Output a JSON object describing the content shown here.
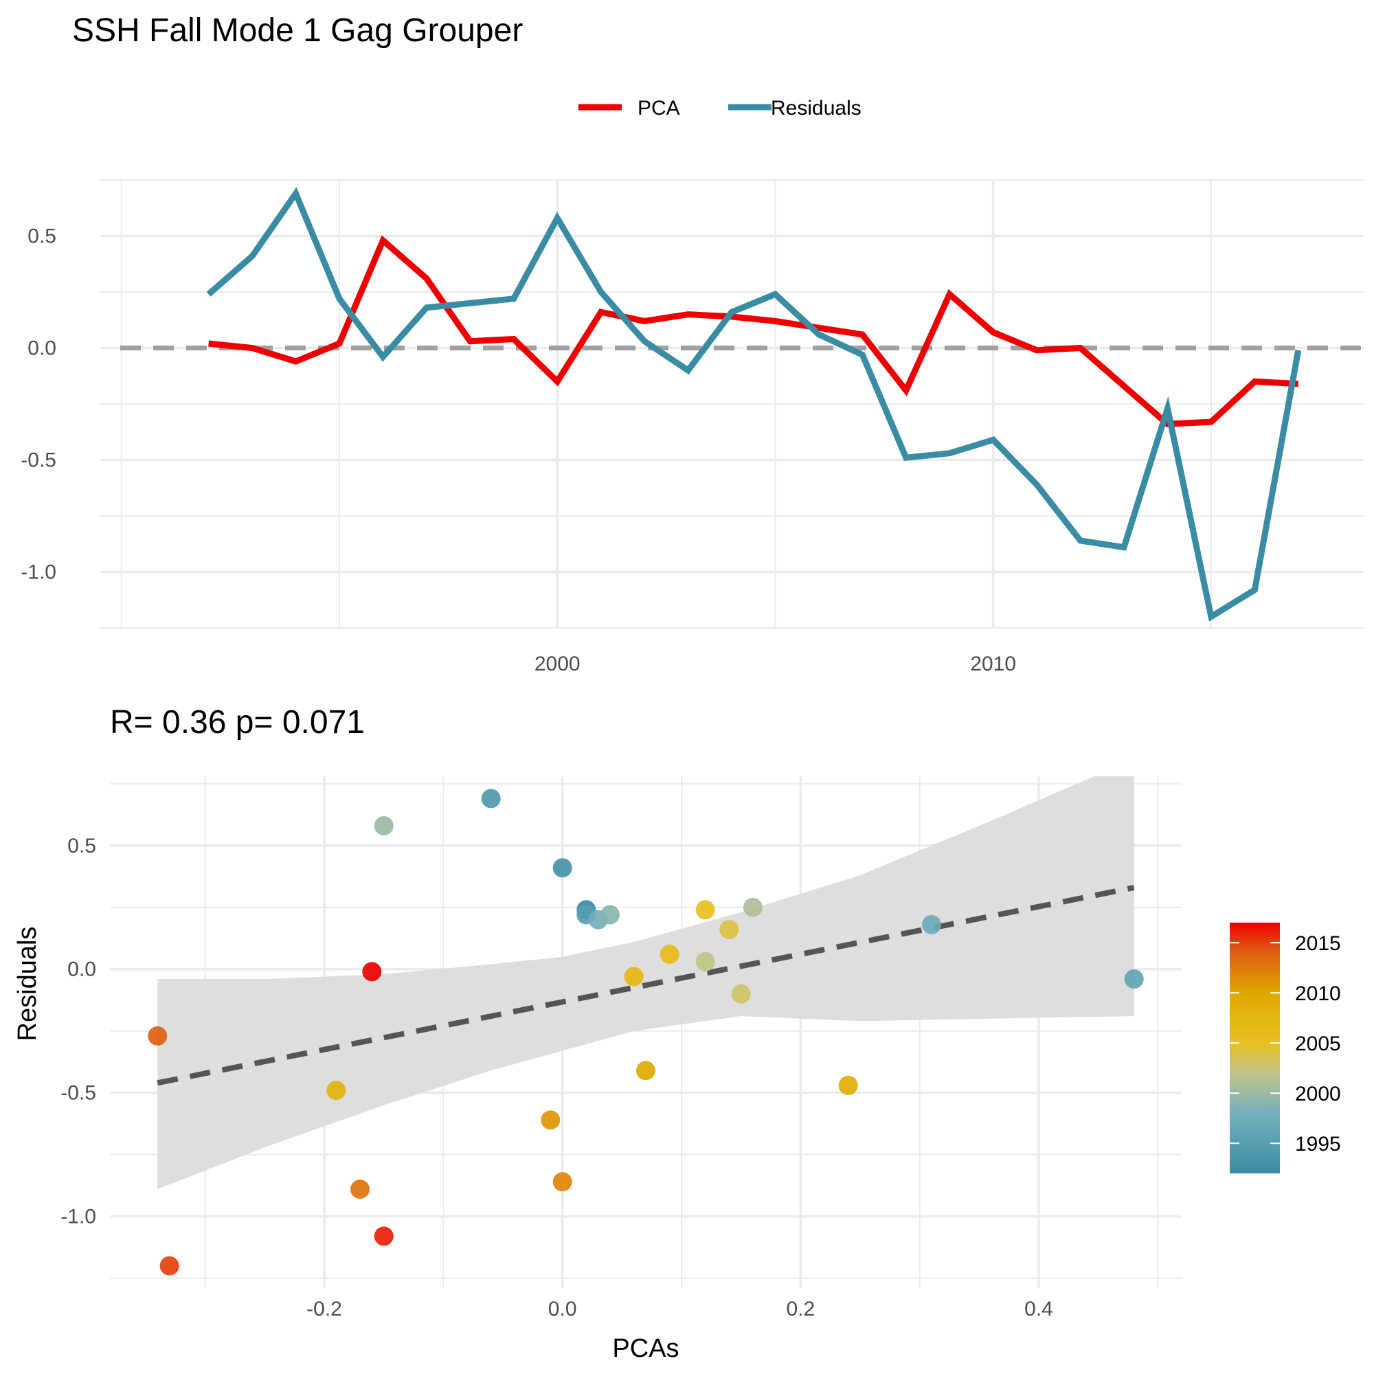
{
  "title": "SSH Fall Mode 1 Gag Grouper",
  "colors": {
    "pca": "#EE0000",
    "residuals": "#3A8CA4",
    "zero_line": "#A0A0A0",
    "trend": "#555555",
    "ribbon": "#DCDCDC",
    "grid": "#EBEBEB"
  },
  "chart_data": [
    {
      "type": "line",
      "legend": {
        "position": "top",
        "entries": [
          "PCA",
          "Residuals"
        ]
      },
      "x": [
        1992,
        1993,
        1994,
        1995,
        1996,
        1997,
        1998,
        1999,
        2000,
        2001,
        2002,
        2003,
        2004,
        2005,
        2006,
        2007,
        2008,
        2009,
        2010,
        2011,
        2012,
        2013,
        2014,
        2015,
        2016,
        2017,
        2018
      ],
      "series": [
        {
          "name": "PCA",
          "values": [
            0.02,
            0.0,
            -0.06,
            0.02,
            0.48,
            0.31,
            0.03,
            0.04,
            -0.15,
            0.16,
            0.12,
            0.15,
            0.14,
            0.12,
            0.09,
            0.06,
            -0.19,
            0.24,
            0.07,
            -0.01,
            0.0,
            -0.17,
            -0.34,
            -0.33,
            -0.15,
            -0.16,
            null
          ]
        },
        {
          "name": "Residuals",
          "values": [
            0.24,
            0.41,
            0.69,
            0.22,
            -0.04,
            0.18,
            0.2,
            0.22,
            0.58,
            0.25,
            0.03,
            -0.1,
            0.16,
            0.24,
            0.06,
            -0.03,
            -0.49,
            -0.47,
            -0.41,
            -0.61,
            -0.86,
            -0.89,
            -0.27,
            -1.2,
            -1.08,
            -0.01,
            null
          ]
        }
      ],
      "hline": 0,
      "xlim": [
        1989.5,
        2018.5
      ],
      "ylim": [
        -1.25,
        0.75
      ],
      "xticks": [
        2000,
        2010
      ],
      "yticks": [
        0.5,
        0.0,
        -0.5,
        -1.0
      ],
      "ytick_labels": [
        "0.5",
        "0.0",
        "-0.5",
        "-1.0"
      ],
      "grid": true,
      "xlabel": "",
      "ylabel": ""
    },
    {
      "type": "scatter",
      "title": "R= 0.36  p= 0.071",
      "xlabel": "PCAs",
      "ylabel": "Residuals",
      "xlim": [
        -0.38,
        0.52
      ],
      "ylim": [
        -1.29,
        0.78
      ],
      "xticks": [
        -0.2,
        0.0,
        0.2,
        0.4
      ],
      "xtick_labels": [
        "-0.2",
        "0.0",
        "0.2",
        "0.4"
      ],
      "yticks": [
        0.5,
        0.0,
        -0.5,
        -1.0
      ],
      "ytick_labels": [
        "0.5",
        "0.0",
        "-0.5",
        "-1.0"
      ],
      "grid": true,
      "points": [
        {
          "x": 0.02,
          "y": 0.24,
          "year": 1992
        },
        {
          "x": 0.0,
          "y": 0.41,
          "year": 1993
        },
        {
          "x": -0.06,
          "y": 0.69,
          "year": 1994
        },
        {
          "x": 0.02,
          "y": 0.22,
          "year": 1995
        },
        {
          "x": 0.48,
          "y": -0.04,
          "year": 1996
        },
        {
          "x": 0.31,
          "y": 0.18,
          "year": 1997
        },
        {
          "x": 0.03,
          "y": 0.2,
          "year": 1998
        },
        {
          "x": 0.04,
          "y": 0.22,
          "year": 1999
        },
        {
          "x": -0.15,
          "y": 0.58,
          "year": 2000
        },
        {
          "x": 0.16,
          "y": 0.25,
          "year": 2001
        },
        {
          "x": 0.12,
          "y": 0.03,
          "year": 2002
        },
        {
          "x": 0.15,
          "y": -0.1,
          "year": 2003
        },
        {
          "x": 0.14,
          "y": 0.16,
          "year": 2004
        },
        {
          "x": 0.12,
          "y": 0.24,
          "year": 2005
        },
        {
          "x": 0.09,
          "y": 0.06,
          "year": 2006
        },
        {
          "x": 0.06,
          "y": -0.03,
          "year": 2007
        },
        {
          "x": -0.19,
          "y": -0.49,
          "year": 2008
        },
        {
          "x": 0.24,
          "y": -0.47,
          "year": 2009
        },
        {
          "x": 0.07,
          "y": -0.41,
          "year": 2010
        },
        {
          "x": -0.01,
          "y": -0.61,
          "year": 2011
        },
        {
          "x": 0.0,
          "y": -0.86,
          "year": 2012
        },
        {
          "x": -0.17,
          "y": -0.89,
          "year": 2013
        },
        {
          "x": -0.34,
          "y": -0.27,
          "year": 2014
        },
        {
          "x": -0.33,
          "y": -1.2,
          "year": 2015
        },
        {
          "x": -0.15,
          "y": -1.08,
          "year": 2016
        },
        {
          "x": -0.16,
          "y": -0.01,
          "year": 2017
        }
      ],
      "trend": {
        "x": [
          -0.34,
          0.48
        ],
        "y": [
          -0.46,
          0.33
        ]
      },
      "ribbon": {
        "x": [
          -0.34,
          -0.25,
          -0.15,
          -0.06,
          0.0,
          0.06,
          0.15,
          0.25,
          0.36,
          0.48
        ],
        "lower": [
          -0.89,
          -0.72,
          -0.55,
          -0.41,
          -0.33,
          -0.25,
          -0.19,
          -0.21,
          -0.2,
          -0.19
        ],
        "upper": [
          -0.04,
          -0.04,
          -0.02,
          0.02,
          0.05,
          0.11,
          0.23,
          0.38,
          0.6,
          0.85
        ]
      },
      "colorbar": {
        "ticks": [
          1995,
          2000,
          2005,
          2010,
          2015
        ],
        "range": [
          1992,
          2017
        ],
        "stops": [
          {
            "year": 1992,
            "color": "#3A8CA4"
          },
          {
            "year": 1998,
            "color": "#74B0BB"
          },
          {
            "year": 2002,
            "color": "#C2C48A"
          },
          {
            "year": 2005,
            "color": "#E8C020"
          },
          {
            "year": 2010,
            "color": "#E0A800"
          },
          {
            "year": 2014,
            "color": "#E06010"
          },
          {
            "year": 2017,
            "color": "#EE0000"
          }
        ]
      }
    }
  ]
}
